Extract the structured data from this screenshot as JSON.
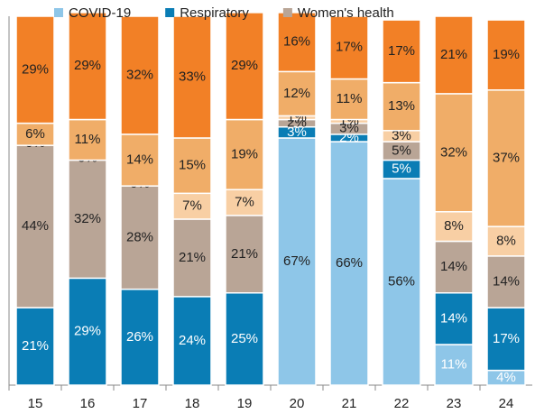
{
  "chart_data": {
    "type": "stacked_bar",
    "categories": [
      "15",
      "16",
      "17",
      "18",
      "19",
      "20",
      "21",
      "22",
      "23",
      "24"
    ],
    "ylim": [
      0,
      100
    ],
    "series": [
      {
        "name": "COVID-19",
        "color": "#8ec6e8",
        "values": [
          0,
          0,
          0,
          0,
          0,
          67,
          66,
          56,
          11,
          4
        ],
        "value_labels": [
          "0%",
          "0%",
          "0%",
          "0%",
          "0%",
          "67%",
          "66%",
          "56%",
          "11%",
          "4%"
        ]
      },
      {
        "name": "Respiratory",
        "color": "#0a7db5",
        "values": [
          21,
          29,
          26,
          24,
          25,
          3,
          2,
          5,
          14,
          17
        ],
        "value_labels": [
          "21%",
          "29%",
          "26%",
          "24%",
          "25%",
          "3%",
          "2%",
          "5%",
          "14%",
          "17%"
        ]
      },
      {
        "name": "Women's health",
        "color": "#b9a596",
        "values": [
          44,
          32,
          28,
          21,
          21,
          2,
          3,
          5,
          14,
          14
        ],
        "value_labels": [
          "44%",
          "32%",
          "28%",
          "21%",
          "21%",
          "2%",
          "3%",
          "5%",
          "14%",
          "14%"
        ]
      },
      {
        "color": "#f8cfa4",
        "values": [
          0,
          0,
          0,
          7,
          7,
          1,
          1,
          3,
          8,
          8
        ],
        "value_labels": [
          "0%",
          "0%",
          "0%",
          "7%",
          "7%",
          "1%",
          "1%",
          "3%",
          "8%",
          "8%"
        ]
      },
      {
        "color": "#f0ad68",
        "values": [
          6,
          11,
          14,
          15,
          19,
          12,
          11,
          13,
          32,
          37
        ],
        "value_labels": [
          "6%",
          "11%",
          "14%",
          "15%",
          "19%",
          "12%",
          "11%",
          "13%",
          "32%",
          "37%"
        ]
      },
      {
        "color": "#f28026",
        "values": [
          29,
          29,
          32,
          33,
          29,
          16,
          17,
          17,
          21,
          19
        ],
        "value_labels": [
          "29%",
          "29%",
          "32%",
          "33%",
          "29%",
          "16%",
          "17%",
          "17%",
          "21%",
          "19%"
        ]
      }
    ]
  }
}
